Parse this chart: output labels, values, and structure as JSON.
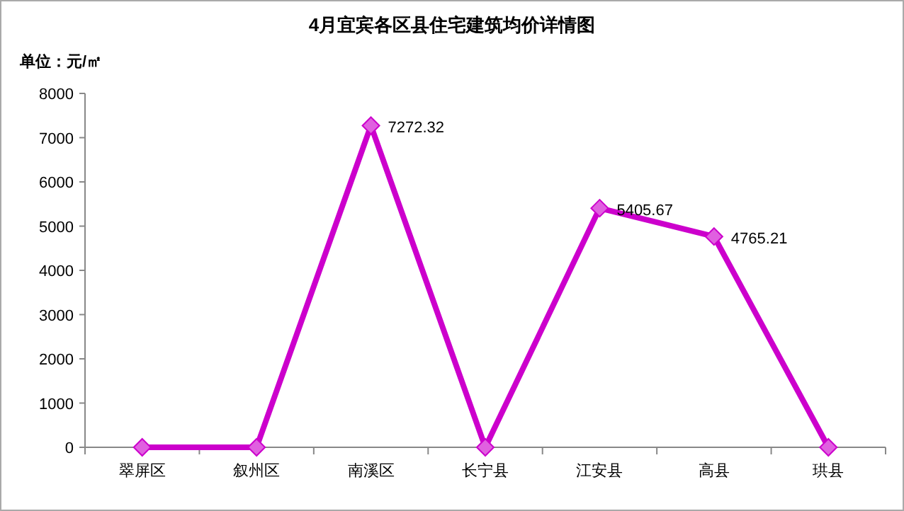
{
  "chart_data": {
    "type": "line",
    "title": "4月宜宾各区县住宅建筑均价详情图",
    "ylabel": "单位：元/㎡",
    "categories": [
      "翠屏区",
      "叙州区",
      "南溪区",
      "长宁县",
      "江安县",
      "高县",
      "珙县"
    ],
    "series": [
      {
        "color": "#cc00cc",
        "values": [
          0,
          0,
          7272.32,
          0,
          5405.67,
          4765.21,
          0
        ],
        "value_labels": [
          null,
          null,
          "7272.32",
          null,
          "5405.67",
          "4765.21",
          null
        ]
      }
    ],
    "ylim": [
      0,
      8000
    ],
    "yticks": [
      0,
      1000,
      2000,
      3000,
      4000,
      5000,
      6000,
      7000,
      8000
    ],
    "marker": "diamond",
    "line_style": "solid",
    "grid": false
  }
}
